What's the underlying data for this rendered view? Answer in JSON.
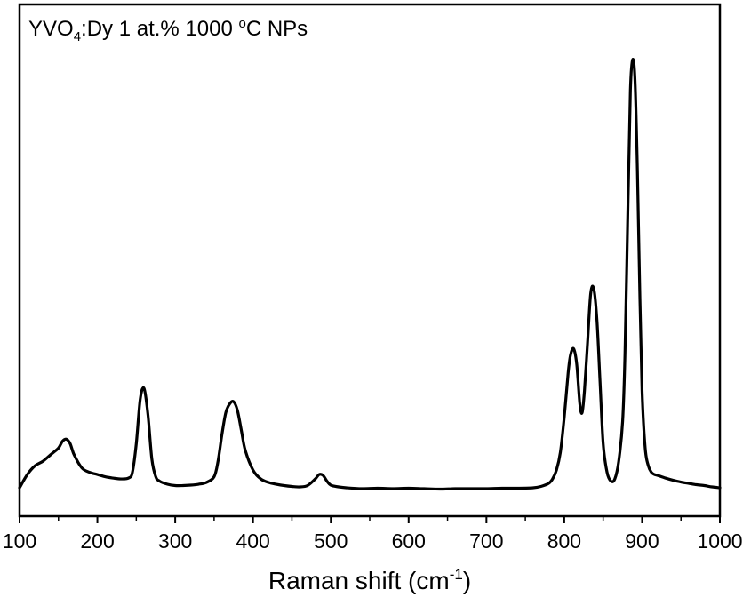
{
  "chart_data": {
    "type": "line",
    "title": "",
    "annotation": {
      "main": "YVO",
      "subscript": "4",
      "rest_before_sup": ":Dy 1 at.% 1000 ",
      "superscript": "o",
      "rest_after_sup": "C NPs"
    },
    "xlabel": {
      "main": "Raman shift (cm",
      "superscript": "-1",
      "closing": ")"
    },
    "ylabel": "",
    "xlim": [
      100,
      1000
    ],
    "ylim": [
      0,
      1.0
    ],
    "y_axis_ticks_shown": false,
    "grid": false,
    "x_ticks": [
      100,
      200,
      300,
      400,
      500,
      600,
      700,
      800,
      900,
      1000
    ],
    "x_tick_labels": [
      "100",
      "200",
      "300",
      "400",
      "500",
      "600",
      "700",
      "800",
      "900",
      "1000"
    ],
    "line_color": "#000000",
    "series": [
      {
        "x": [
          100,
          110,
          120,
          130,
          140,
          150,
          155,
          160,
          165,
          170,
          180,
          190,
          200,
          210,
          220,
          230,
          240,
          245,
          250,
          255,
          260,
          265,
          270,
          275,
          280,
          290,
          300,
          310,
          320,
          330,
          340,
          350,
          355,
          360,
          365,
          370,
          375,
          380,
          385,
          390,
          400,
          410,
          420,
          430,
          440,
          450,
          460,
          470,
          480,
          485,
          490,
          495,
          500,
          510,
          520,
          540,
          560,
          580,
          600,
          620,
          640,
          660,
          680,
          700,
          720,
          740,
          760,
          770,
          780,
          785,
          790,
          795,
          800,
          805,
          808,
          812,
          816,
          820,
          823,
          826,
          830,
          834,
          838,
          842,
          846,
          850,
          855,
          860,
          865,
          870,
          875,
          878,
          882,
          885,
          888,
          891,
          894,
          897,
          900,
          904,
          908,
          912,
          916,
          920,
          930,
          940,
          950,
          960,
          970,
          980,
          990,
          1000
        ],
        "y": [
          0.0,
          0.03,
          0.05,
          0.06,
          0.075,
          0.09,
          0.105,
          0.11,
          0.1,
          0.075,
          0.045,
          0.035,
          0.03,
          0.025,
          0.022,
          0.02,
          0.022,
          0.035,
          0.1,
          0.2,
          0.225,
          0.165,
          0.065,
          0.025,
          0.015,
          0.008,
          0.005,
          0.005,
          0.006,
          0.008,
          0.012,
          0.025,
          0.06,
          0.12,
          0.17,
          0.19,
          0.195,
          0.175,
          0.13,
          0.085,
          0.04,
          0.02,
          0.012,
          0.008,
          0.005,
          0.003,
          0.002,
          0.005,
          0.02,
          0.03,
          0.028,
          0.015,
          0.006,
          0.002,
          0.0,
          -0.002,
          -0.001,
          -0.002,
          -0.001,
          -0.002,
          -0.003,
          -0.002,
          -0.002,
          -0.002,
          -0.001,
          -0.001,
          0.0,
          0.003,
          0.01,
          0.02,
          0.04,
          0.08,
          0.16,
          0.26,
          0.3,
          0.315,
          0.28,
          0.19,
          0.17,
          0.22,
          0.33,
          0.44,
          0.45,
          0.38,
          0.24,
          0.1,
          0.035,
          0.015,
          0.02,
          0.06,
          0.15,
          0.3,
          0.65,
          0.9,
          0.97,
          0.92,
          0.72,
          0.45,
          0.22,
          0.09,
          0.05,
          0.035,
          0.03,
          0.028,
          0.022,
          0.017,
          0.013,
          0.01,
          0.007,
          0.005,
          0.002,
          0.0
        ]
      }
    ]
  }
}
